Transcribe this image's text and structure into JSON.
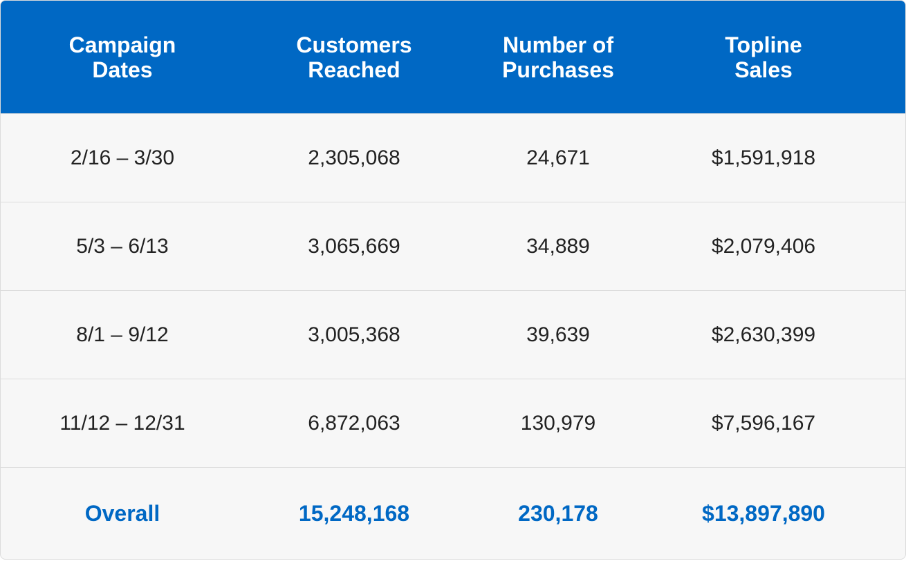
{
  "table": {
    "headers": [
      "Campaign Dates",
      "Customers Reached",
      "Number of Purchases",
      "Topline Sales"
    ],
    "rows": [
      [
        "2/16 – 3/30",
        "2,305,068",
        "24,671",
        "$1,591,918"
      ],
      [
        "5/3 – 6/13",
        "3,065,669",
        "34,889",
        "$2,079,406"
      ],
      [
        "8/1 – 9/12",
        "3,005,368",
        "39,639",
        "$2,630,399"
      ],
      [
        "11/12 – 12/31",
        "6,872,063",
        "130,979",
        "$7,596,167"
      ]
    ],
    "total": [
      "Overall",
      "15,248,168",
      "230,178",
      "$13,897,890"
    ]
  }
}
